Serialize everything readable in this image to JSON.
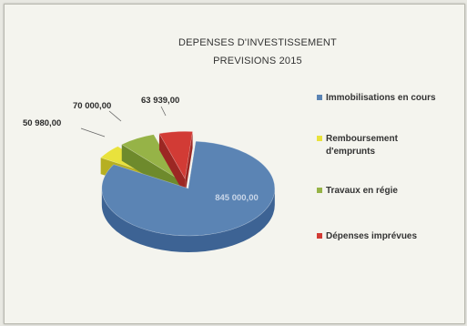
{
  "chart_data": {
    "type": "pie",
    "title_line1": "DEPENSES D'INVESTISSEMENT",
    "title_line2": "PREVISIONS 2015",
    "legend_position": "right",
    "exploded": true,
    "three_d": true,
    "categories": [
      "Immobilisations en cours",
      "Remboursement d'emprunts",
      "Travaux en régie",
      "Dépenses imprévues"
    ],
    "legend_lines": [
      [
        "Immobilisations en cours"
      ],
      [
        "Remboursement",
        "d'emprunts"
      ],
      [
        "Travaux en régie"
      ],
      [
        "Dépenses imprévues"
      ]
    ],
    "values": [
      845000,
      50980,
      70000,
      63939
    ],
    "value_labels": [
      "845 000,00",
      "50 980,00",
      "70 000,00",
      "63 939,00"
    ],
    "colors": [
      "#5b84b4",
      "#e9e23c",
      "#96b347",
      "#d23b35"
    ],
    "side_colors": [
      "#3d6394",
      "#b6af22",
      "#6e8a2c",
      "#9c2723"
    ]
  }
}
